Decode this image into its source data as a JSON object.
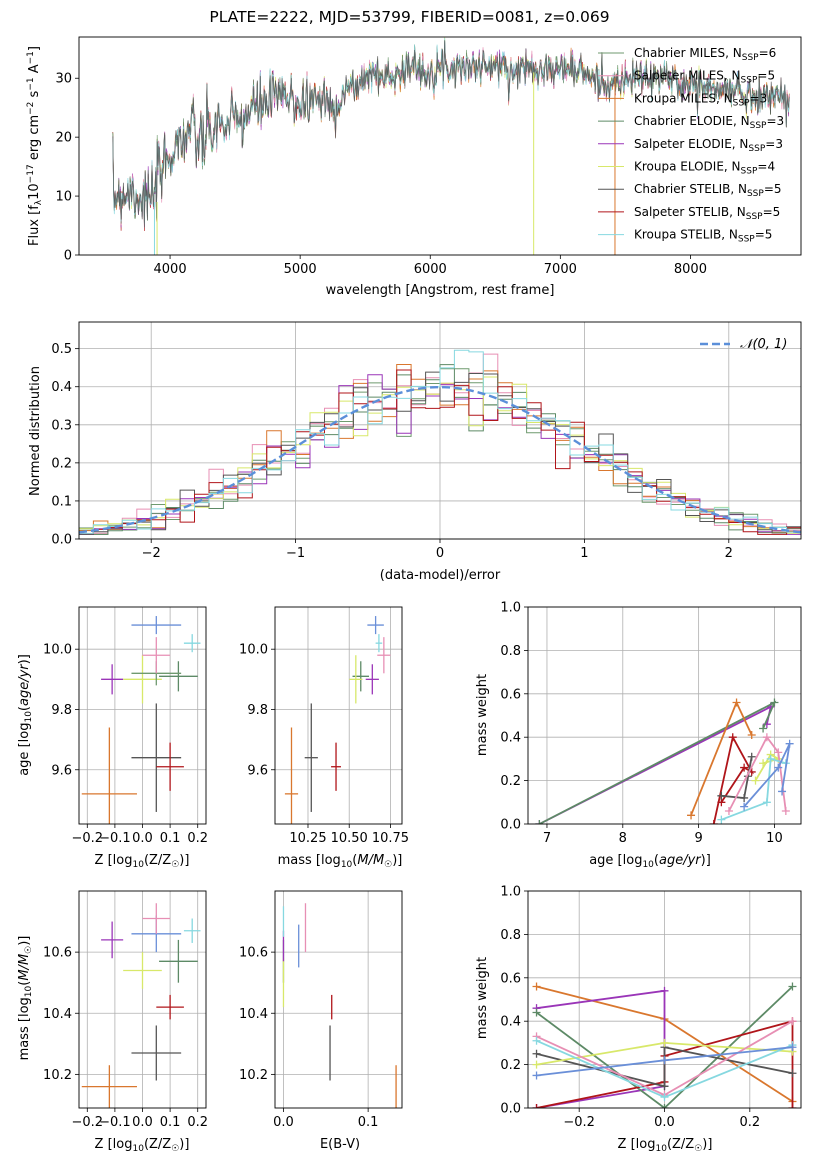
{
  "figure": {
    "title": "PLATE=2222, MJD=53799, FIBERID=0081, z=0.069"
  },
  "colors": {
    "Chabrier MILES": "#6f9a6f",
    "Salpeter MILES": "#e78fb4",
    "Kroupa MILES": "#d9772e",
    "Chabrier ELODIE": "#5d8a66",
    "Salpeter ELODIE": "#9a35b8",
    "Kroupa ELODIE": "#d8e86a",
    "Chabrier STELIB": "#555555",
    "Salpeter STELIB": "#b0151a",
    "Kroupa STELIB": "#86d8e0",
    "blue": "#6a8fd8",
    "gauss": "#5b8fd9"
  },
  "chart_data": [
    {
      "id": "spectrum",
      "type": "line",
      "title": "PLATE=2222, MJD=53799, FIBERID=0081, z=0.069",
      "xlabel": "wavelength [Angstrom, rest frame]",
      "ylabel": "Flux [f_λ10^-17 erg cm^-2 s^-1 A^-1]",
      "xlim": [
        3300,
        8850
      ],
      "ylim": [
        0,
        37
      ],
      "xticks": [
        4000,
        5000,
        6000,
        7000,
        8000
      ],
      "yticks": [
        0,
        10,
        20,
        30
      ],
      "grid": false,
      "legend_position": "right",
      "legend": [
        {
          "label": "Chabrier MILES, N",
          "sub": "SSP",
          "eq": "=6"
        },
        {
          "label": "Salpeter MILES, N",
          "sub": "SSP",
          "eq": "=5"
        },
        {
          "label": "Kroupa MILES, N",
          "sub": "SSP",
          "eq": "=3"
        },
        {
          "label": "Chabrier ELODIE, N",
          "sub": "SSP",
          "eq": "=3"
        },
        {
          "label": "Salpeter ELODIE, N",
          "sub": "SSP",
          "eq": "=3"
        },
        {
          "label": "Kroupa ELODIE, N",
          "sub": "SSP",
          "eq": "=4"
        },
        {
          "label": "Chabrier STELIB, N",
          "sub": "SSP",
          "eq": "=5"
        },
        {
          "label": "Salpeter STELIB, N",
          "sub": "SSP",
          "eq": "=5"
        },
        {
          "label": "Kroupa STELIB, N",
          "sub": "SSP",
          "eq": "=5"
        }
      ],
      "x": [
        3550,
        3700,
        3850,
        3950,
        4050,
        4150,
        4250,
        4350,
        4450,
        4550,
        4650,
        4750,
        4850,
        4950,
        5050,
        5150,
        5250,
        5350,
        5450,
        5550,
        5650,
        5750,
        5850,
        5950,
        6050,
        6150,
        6250,
        6350,
        6450,
        6550,
        6650,
        6750,
        6850,
        6950,
        7050,
        7150,
        7250,
        7350,
        7450,
        7550,
        7650,
        7750,
        7850,
        7950,
        8050,
        8150,
        8250,
        8350,
        8450,
        8550,
        8650,
        8800
      ],
      "y": [
        10,
        11,
        9,
        15,
        19,
        21,
        19,
        22,
        22,
        23,
        25,
        26,
        27,
        26,
        26,
        27,
        25,
        28,
        29,
        31,
        30,
        31,
        32,
        31,
        32,
        32,
        32,
        32,
        32,
        32,
        31,
        32,
        32,
        31,
        32,
        31,
        30,
        29,
        29,
        30,
        30,
        30,
        30,
        29,
        29,
        28,
        28,
        28,
        27,
        27,
        27,
        26
      ]
    },
    {
      "id": "residuals",
      "type": "histogram",
      "xlabel": "(data-model)/error",
      "ylabel": "Normed distribution",
      "xlim": [
        -2.5,
        2.5
      ],
      "ylim": [
        0,
        0.57
      ],
      "xticks": [
        -2,
        -1,
        0,
        1,
        2
      ],
      "yticks": [
        0.0,
        0.1,
        0.2,
        0.3,
        0.4,
        0.5
      ],
      "grid": true,
      "legend_position": "top-right",
      "legend_label": "N(0,1)",
      "bin_width": 0.1,
      "bins_start": -2.5
    },
    {
      "id": "age_vs_Z",
      "type": "errorbar",
      "xlabel": "Z [log10(Z/Z☉)]",
      "ylabel": "age [log10(age/yr)]",
      "xlim": [
        -0.23,
        0.23
      ],
      "ylim": [
        9.42,
        10.14
      ],
      "xticks": [
        -0.2,
        -0.1,
        0.0,
        0.1,
        0.2
      ],
      "yticks": [
        9.6,
        9.8,
        10.0
      ],
      "grid": true,
      "points": [
        {
          "model": "Kroupa MILES",
          "x": -0.12,
          "xerr": 0.1,
          "y": 9.52,
          "yerr": 0.22
        },
        {
          "model": "Chabrier STELIB",
          "x": 0.05,
          "xerr": 0.09,
          "y": 9.64,
          "yerr": 0.18
        },
        {
          "model": "Salpeter STELIB",
          "x": 0.1,
          "xerr": 0.05,
          "y": 9.61,
          "yerr": 0.08
        },
        {
          "model": "Salpeter ELODIE",
          "x": -0.11,
          "xerr": 0.04,
          "y": 9.9,
          "yerr": 0.05
        },
        {
          "model": "Chabrier ELODIE",
          "x": 0.13,
          "xerr": 0.07,
          "y": 9.91,
          "yerr": 0.05
        },
        {
          "model": "Kroupa ELODIE",
          "x": 0.0,
          "xerr": 0.07,
          "y": 9.9,
          "yerr": 0.08
        },
        {
          "model": "Chabrier MILES",
          "x": 0.05,
          "xerr": 0.09,
          "y": 9.92,
          "yerr": 0.04
        },
        {
          "model": "blue",
          "x": 0.05,
          "xerr": 0.09,
          "y": 10.08,
          "yerr": 0.03
        },
        {
          "model": "Salpeter MILES",
          "x": 0.05,
          "xerr": 0.05,
          "y": 9.98,
          "yerr": 0.06
        },
        {
          "model": "Kroupa STELIB",
          "x": 0.18,
          "xerr": 0.03,
          "y": 10.02,
          "yerr": 0.03
        }
      ]
    },
    {
      "id": "age_vs_mass",
      "type": "errorbar",
      "xlabel": "mass [log10(M/M☉)]",
      "xlim": [
        10.05,
        10.82
      ],
      "ylim": [
        9.42,
        10.14
      ],
      "xticks": [
        10.25,
        10.5,
        10.75
      ],
      "xticklabels": [
        "10.25",
        "10.50",
        "10.75"
      ],
      "yticks": [
        9.6,
        9.8,
        10.0
      ],
      "grid": true,
      "points": [
        {
          "model": "Kroupa MILES",
          "x": 10.15,
          "xerr": 0.04,
          "y": 9.52,
          "yerr": 0.22
        },
        {
          "model": "Chabrier STELIB",
          "x": 10.27,
          "xerr": 0.04,
          "y": 9.64,
          "yerr": 0.18
        },
        {
          "model": "Salpeter STELIB",
          "x": 10.42,
          "xerr": 0.03,
          "y": 9.61,
          "yerr": 0.08
        },
        {
          "model": "Chabrier ELODIE",
          "x": 10.57,
          "xerr": 0.05,
          "y": 9.91,
          "yerr": 0.05
        },
        {
          "model": "Kroupa ELODIE",
          "x": 10.54,
          "xerr": 0.04,
          "y": 9.9,
          "yerr": 0.08
        },
        {
          "model": "Salpeter ELODIE",
          "x": 10.64,
          "xerr": 0.04,
          "y": 9.9,
          "yerr": 0.05
        },
        {
          "model": "blue",
          "x": 10.66,
          "xerr": 0.05,
          "y": 10.08,
          "yerr": 0.03
        },
        {
          "model": "Salpeter MILES",
          "x": 10.71,
          "xerr": 0.04,
          "y": 9.98,
          "yerr": 0.06
        },
        {
          "model": "Kroupa STELIB",
          "x": 10.68,
          "xerr": 0.02,
          "y": 10.02,
          "yerr": 0.03
        }
      ]
    },
    {
      "id": "weight_vs_age",
      "type": "line",
      "xlabel": "age [log10(age/yr)]",
      "ylabel": "mass weight",
      "xlim": [
        6.75,
        10.35
      ],
      "ylim": [
        0,
        1.0
      ],
      "xticks": [
        7,
        8,
        9,
        10
      ],
      "yticks": [
        0.0,
        0.2,
        0.4,
        0.6,
        0.8,
        1.0
      ],
      "grid": true
    },
    {
      "id": "mass_vs_Z",
      "type": "errorbar",
      "xlabel": "Z [log10(Z/Z☉)]",
      "ylabel": "mass [log10(M/M☉)]",
      "xlim": [
        -0.23,
        0.23
      ],
      "ylim": [
        10.09,
        10.8
      ],
      "xticks": [
        -0.2,
        -0.1,
        0.0,
        0.1,
        0.2
      ],
      "yticks": [
        10.2,
        10.4,
        10.6
      ],
      "grid": true,
      "points": [
        {
          "model": "Kroupa MILES",
          "x": -0.12,
          "xerr": 0.1,
          "y": 10.16,
          "yerr": 0.07
        },
        {
          "model": "Chabrier STELIB",
          "x": 0.05,
          "xerr": 0.09,
          "y": 10.27,
          "yerr": 0.09
        },
        {
          "model": "Salpeter STELIB",
          "x": 0.1,
          "xerr": 0.05,
          "y": 10.42,
          "yerr": 0.04
        },
        {
          "model": "Chabrier ELODIE",
          "x": 0.13,
          "xerr": 0.07,
          "y": 10.57,
          "yerr": 0.07
        },
        {
          "model": "Kroupa ELODIE",
          "x": 0.0,
          "xerr": 0.07,
          "y": 10.54,
          "yerr": 0.06
        },
        {
          "model": "Salpeter ELODIE",
          "x": -0.11,
          "xerr": 0.04,
          "y": 10.64,
          "yerr": 0.06
        },
        {
          "model": "blue",
          "x": 0.05,
          "xerr": 0.09,
          "y": 10.66,
          "yerr": 0.06
        },
        {
          "model": "Salpeter MILES",
          "x": 0.05,
          "xerr": 0.05,
          "y": 10.71,
          "yerr": 0.05
        },
        {
          "model": "Kroupa STELIB",
          "x": 0.18,
          "xerr": 0.03,
          "y": 10.67,
          "yerr": 0.04
        }
      ]
    },
    {
      "id": "mass_vs_EBV",
      "type": "errorbar",
      "xlabel": "E(B-V)",
      "xlim": [
        -0.01,
        0.14
      ],
      "ylim": [
        10.09,
        10.8
      ],
      "xticks": [
        0.0,
        0.1
      ],
      "xticklabels": [
        "0.0",
        "0.1"
      ],
      "yticks": [
        10.2,
        10.4,
        10.6
      ],
      "grid": true,
      "points": [
        {
          "model": "Kroupa MILES",
          "x": 0.133,
          "y": 10.16,
          "yerr": 0.07
        },
        {
          "model": "Chabrier STELIB",
          "x": 0.055,
          "y": 10.27,
          "yerr": 0.09
        },
        {
          "model": "Salpeter STELIB",
          "x": 0.057,
          "y": 10.42,
          "yerr": 0.04
        },
        {
          "model": "Chabrier ELODIE",
          "x": 0.0,
          "y": 10.57,
          "yerr": 0.07
        },
        {
          "model": "Kroupa ELODIE",
          "x": 0.0,
          "y": 10.5,
          "yerr": 0.08
        },
        {
          "model": "Salpeter ELODIE",
          "x": 0.0,
          "y": 10.62,
          "yerr": 0.05
        },
        {
          "model": "blue",
          "x": 0.018,
          "y": 10.62,
          "yerr": 0.07
        },
        {
          "model": "Salpeter MILES",
          "x": 0.026,
          "y": 10.68,
          "yerr": 0.08
        },
        {
          "model": "Kroupa STELIB",
          "x": 0.0,
          "y": 10.7,
          "yerr": 0.05
        }
      ]
    },
    {
      "id": "weight_vs_Z",
      "type": "line",
      "xlabel": "Z [log10(Z/Z☉)]",
      "ylabel": "mass weight",
      "xlim": [
        -0.32,
        0.32
      ],
      "ylim": [
        0,
        1.0
      ],
      "xticks": [
        -0.2,
        0.0,
        0.2
      ],
      "yticks": [
        0.0,
        0.2,
        0.4,
        0.6,
        0.8,
        1.0
      ],
      "grid": true
    }
  ]
}
